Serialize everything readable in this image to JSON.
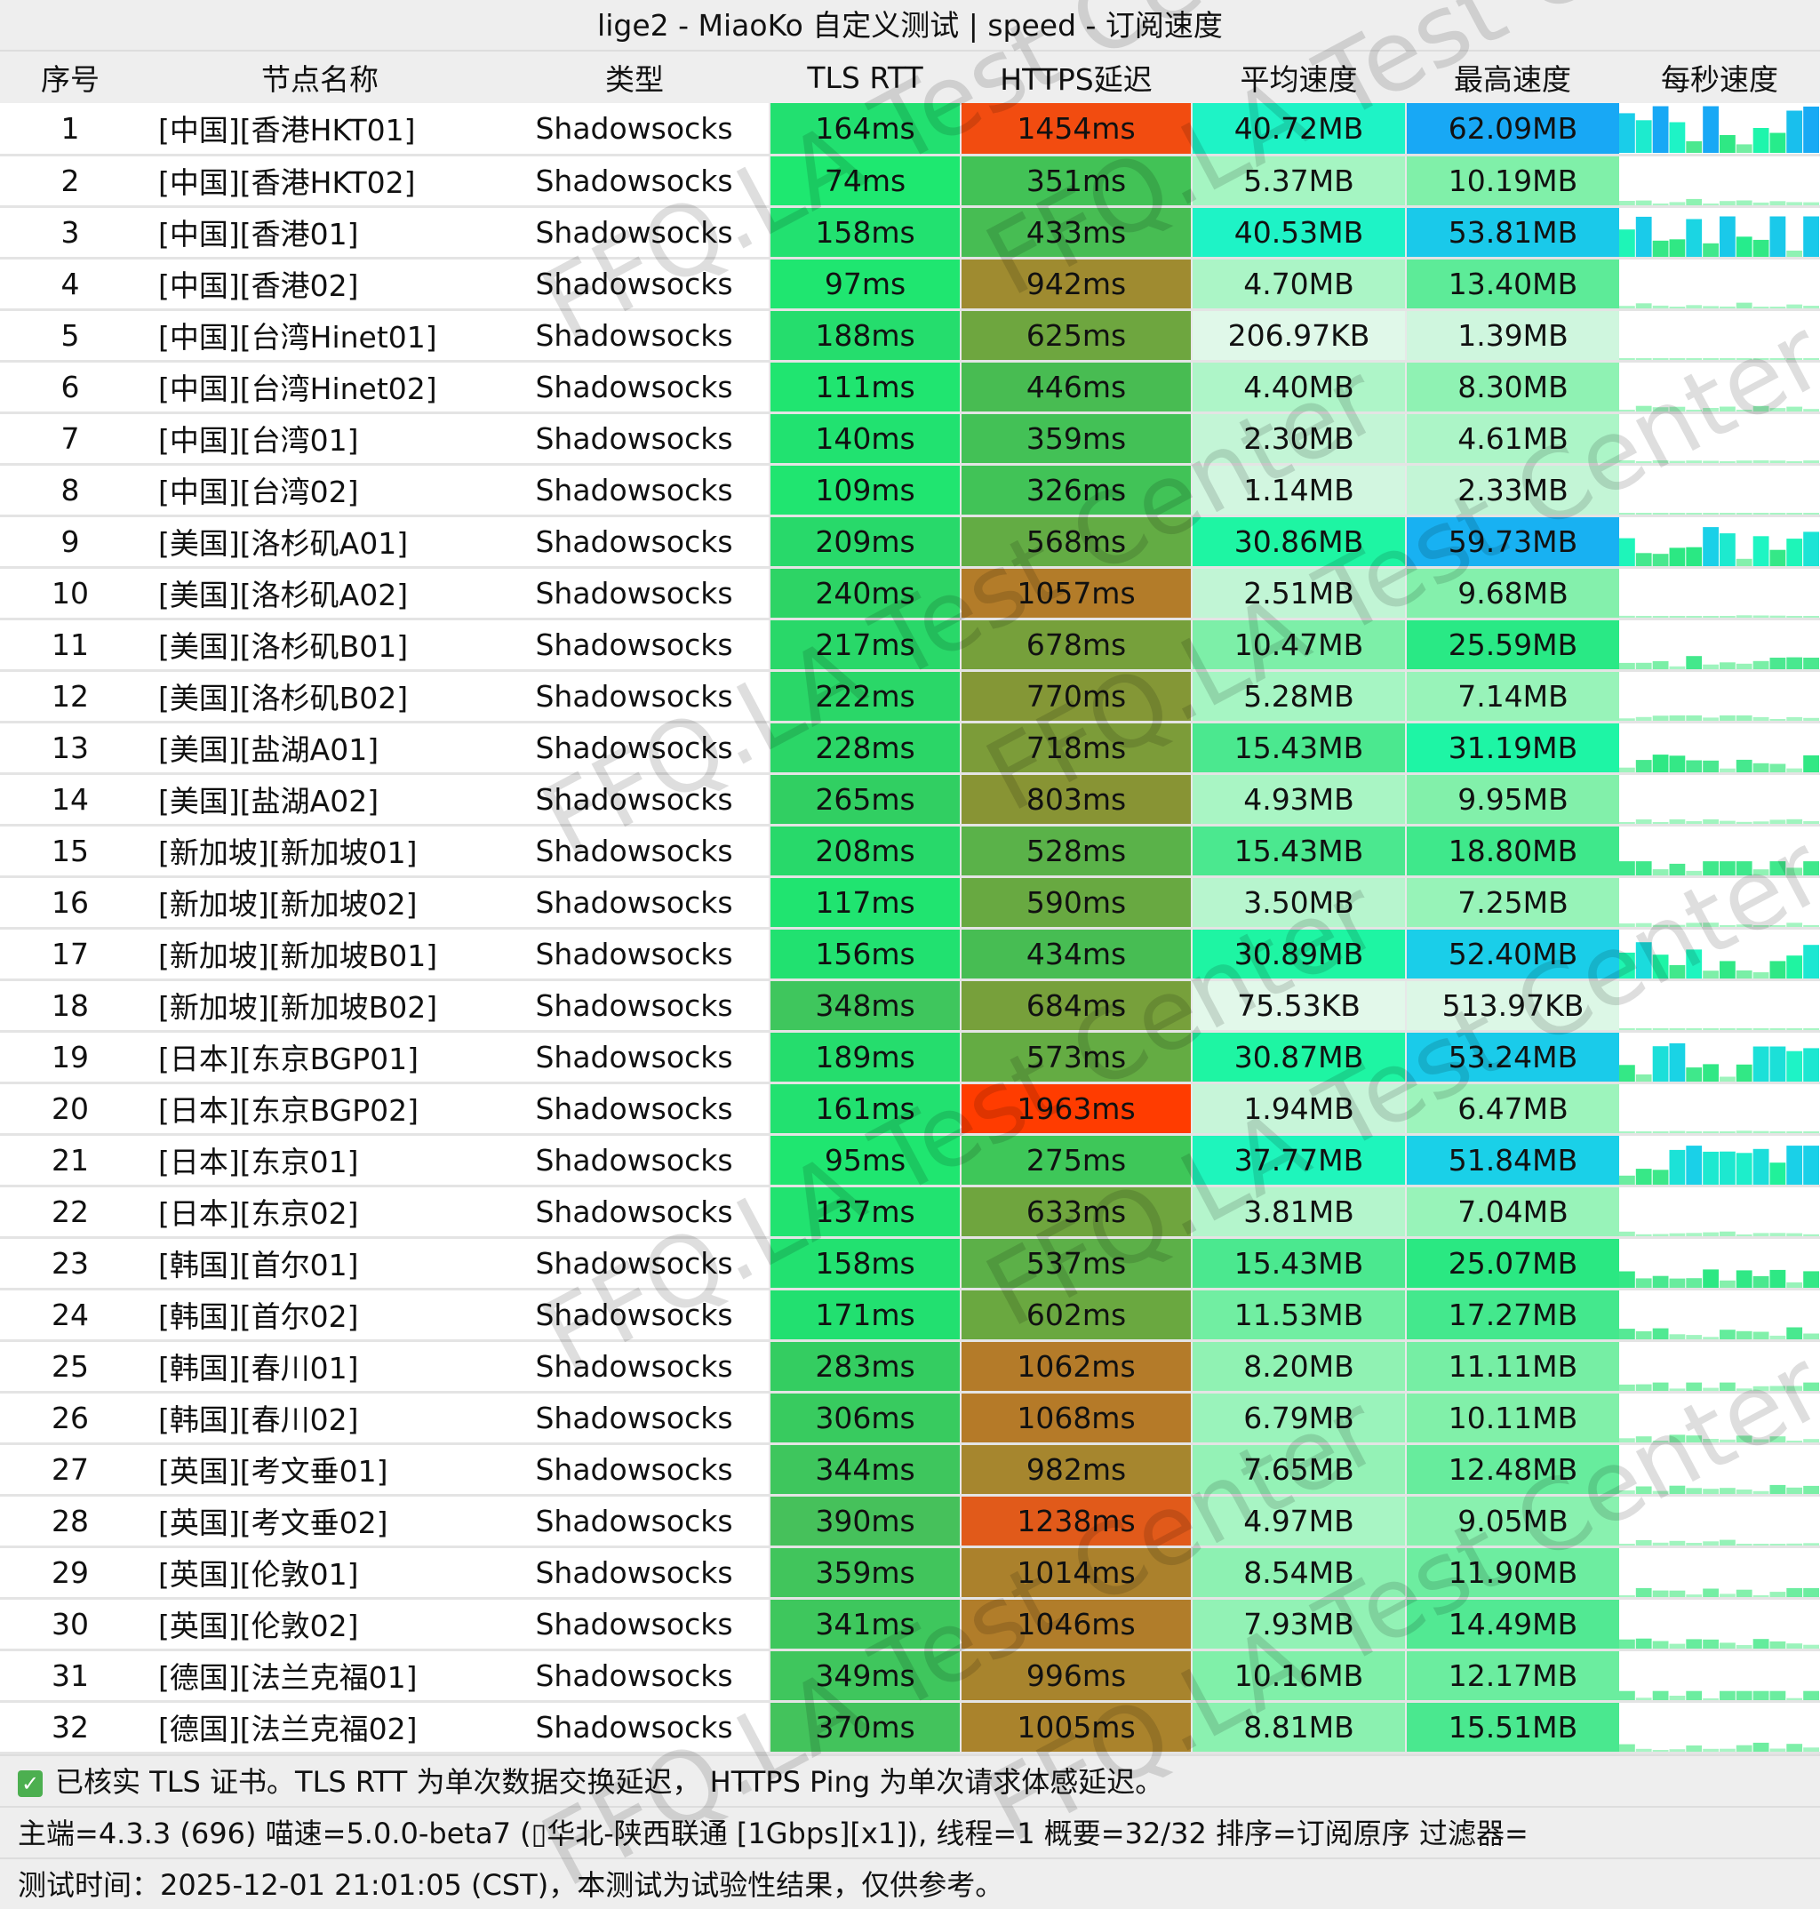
{
  "title": "lige2 - MiaoKo 自定义测试 | speed - 订阅速度",
  "columns": [
    "序号",
    "节点名称",
    "类型",
    "TLS RTT",
    "HTTPS延迟",
    "平均速度",
    "最高速度",
    "每秒速度"
  ],
  "rows": [
    [
      "1",
      "[中国][香港HKT01]",
      "Shadowsocks",
      "164ms",
      "1454ms",
      "40.72MB",
      "62.09MB"
    ],
    [
      "2",
      "[中国][香港HKT02]",
      "Shadowsocks",
      "74ms",
      "351ms",
      "5.37MB",
      "10.19MB"
    ],
    [
      "3",
      "[中国][香港01]",
      "Shadowsocks",
      "158ms",
      "433ms",
      "40.53MB",
      "53.81MB"
    ],
    [
      "4",
      "[中国][香港02]",
      "Shadowsocks",
      "97ms",
      "942ms",
      "4.70MB",
      "13.40MB"
    ],
    [
      "5",
      "[中国][台湾Hinet01]",
      "Shadowsocks",
      "188ms",
      "625ms",
      "206.97KB",
      "1.39MB"
    ],
    [
      "6",
      "[中国][台湾Hinet02]",
      "Shadowsocks",
      "111ms",
      "446ms",
      "4.40MB",
      "8.30MB"
    ],
    [
      "7",
      "[中国][台湾01]",
      "Shadowsocks",
      "140ms",
      "359ms",
      "2.30MB",
      "4.61MB"
    ],
    [
      "8",
      "[中国][台湾02]",
      "Shadowsocks",
      "109ms",
      "326ms",
      "1.14MB",
      "2.33MB"
    ],
    [
      "9",
      "[美国][洛杉矶A01]",
      "Shadowsocks",
      "209ms",
      "568ms",
      "30.86MB",
      "59.73MB"
    ],
    [
      "10",
      "[美国][洛杉矶A02]",
      "Shadowsocks",
      "240ms",
      "1057ms",
      "2.51MB",
      "9.68MB"
    ],
    [
      "11",
      "[美国][洛杉矶B01]",
      "Shadowsocks",
      "217ms",
      "678ms",
      "10.47MB",
      "25.59MB"
    ],
    [
      "12",
      "[美国][洛杉矶B02]",
      "Shadowsocks",
      "222ms",
      "770ms",
      "5.28MB",
      "7.14MB"
    ],
    [
      "13",
      "[美国][盐湖A01]",
      "Shadowsocks",
      "228ms",
      "718ms",
      "15.43MB",
      "31.19MB"
    ],
    [
      "14",
      "[美国][盐湖A02]",
      "Shadowsocks",
      "265ms",
      "803ms",
      "4.93MB",
      "9.95MB"
    ],
    [
      "15",
      "[新加坡][新加坡01]",
      "Shadowsocks",
      "208ms",
      "528ms",
      "15.43MB",
      "18.80MB"
    ],
    [
      "16",
      "[新加坡][新加坡02]",
      "Shadowsocks",
      "117ms",
      "590ms",
      "3.50MB",
      "7.25MB"
    ],
    [
      "17",
      "[新加坡][新加坡B01]",
      "Shadowsocks",
      "156ms",
      "434ms",
      "30.89MB",
      "52.40MB"
    ],
    [
      "18",
      "[新加坡][新加坡B02]",
      "Shadowsocks",
      "348ms",
      "684ms",
      "75.53KB",
      "513.97KB"
    ],
    [
      "19",
      "[日本][东京BGP01]",
      "Shadowsocks",
      "189ms",
      "573ms",
      "30.87MB",
      "53.24MB"
    ],
    [
      "20",
      "[日本][东京BGP02]",
      "Shadowsocks",
      "161ms",
      "1963ms",
      "1.94MB",
      "6.47MB"
    ],
    [
      "21",
      "[日本][东京01]",
      "Shadowsocks",
      "95ms",
      "275ms",
      "37.77MB",
      "51.84MB"
    ],
    [
      "22",
      "[日本][东京02]",
      "Shadowsocks",
      "137ms",
      "633ms",
      "3.81MB",
      "7.04MB"
    ],
    [
      "23",
      "[韩国][首尔01]",
      "Shadowsocks",
      "158ms",
      "537ms",
      "15.43MB",
      "25.07MB"
    ],
    [
      "24",
      "[韩国][首尔02]",
      "Shadowsocks",
      "171ms",
      "602ms",
      "11.53MB",
      "17.27MB"
    ],
    [
      "25",
      "[韩国][春川01]",
      "Shadowsocks",
      "283ms",
      "1062ms",
      "8.20MB",
      "11.11MB"
    ],
    [
      "26",
      "[韩国][春川02]",
      "Shadowsocks",
      "306ms",
      "1068ms",
      "6.79MB",
      "10.11MB"
    ],
    [
      "27",
      "[英国][考文垂01]",
      "Shadowsocks",
      "344ms",
      "982ms",
      "7.65MB",
      "12.48MB"
    ],
    [
      "28",
      "[英国][考文垂02]",
      "Shadowsocks",
      "390ms",
      "1238ms",
      "4.97MB",
      "9.05MB"
    ],
    [
      "29",
      "[英国][伦敦01]",
      "Shadowsocks",
      "359ms",
      "1014ms",
      "8.54MB",
      "11.90MB"
    ],
    [
      "30",
      "[英国][伦敦02]",
      "Shadowsocks",
      "341ms",
      "1046ms",
      "7.93MB",
      "14.49MB"
    ],
    [
      "31",
      "[德国][法兰克福01]",
      "Shadowsocks",
      "349ms",
      "996ms",
      "10.16MB",
      "12.17MB"
    ],
    [
      "32",
      "[德国][法兰克福02]",
      "Shadowsocks",
      "370ms",
      "1005ms",
      "8.81MB",
      "15.51MB"
    ]
  ],
  "footer": {
    "check_icon": "checkbox-checked-icon",
    "line1": "已核实 TLS 证书。TLS RTT 为单次数据交换延迟， HTTPS Ping 为单次请求体感延迟。",
    "line2": "主端=4.3.3 (696) 喵速=5.0.0-beta7 (▯华北-陕西联通 [1Gbps][x1]), 线程=1 概要=32/32 排序=订阅原序 过滤器=",
    "line3": "测试时间：2025-12-01 21:01:05 (CST)，本测试为试验性结果，仅供参考。"
  },
  "watermark": "FFQ.LA Test Center",
  "colors": {
    "header_bg": "#eeeeee",
    "latency_good": "#3cc85a",
    "latency_bad": "#ff3c00",
    "speed_high": "#1ab0f5",
    "speed_low": "#e0f8ea"
  }
}
